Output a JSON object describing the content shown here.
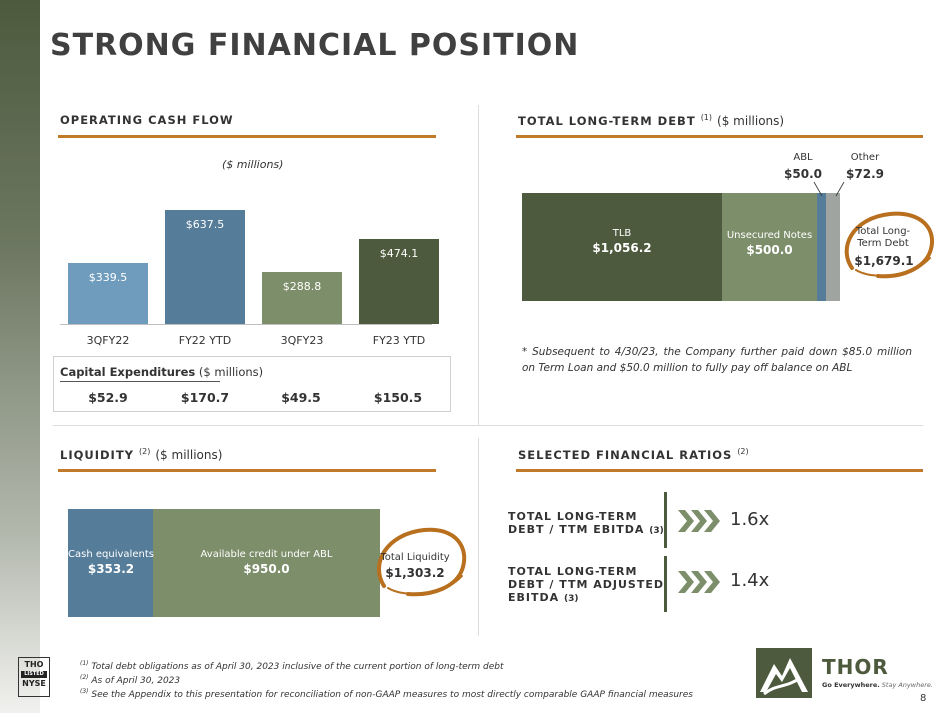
{
  "title": "STRONG FINANCIAL POSITION",
  "ocf": {
    "title": "OPERATING CASH FLOW",
    "units": "($ millions)",
    "chart_data": {
      "type": "bar",
      "categories": [
        "3QFY22",
        "FY22 YTD",
        "3QFY23",
        "FY23 YTD"
      ],
      "values": [
        339.5,
        637.5,
        288.8,
        474.1
      ],
      "value_labels": [
        "$339.5",
        "$637.5",
        "$288.8",
        "$474.1"
      ],
      "colors": [
        "#6f9cbc",
        "#557c99",
        "#7d8e6a",
        "#4d5a3d"
      ]
    },
    "capex": {
      "title_bold": "Capital Expenditures",
      "title_unit": " ($ millions)",
      "values": [
        "$52.9",
        "$170.7",
        "$49.5",
        "$150.5"
      ]
    }
  },
  "debt": {
    "title": "TOTAL LONG-TERM DEBT",
    "sup": "(1)",
    "unit": "($ millions)",
    "chart_data": {
      "type": "bar",
      "stacked": true,
      "segments": [
        {
          "name": "TLB",
          "value": 1056.2,
          "label": "$1,056.2",
          "color": "#4d5a3d"
        },
        {
          "name": "Unsecured Notes",
          "value": 500.0,
          "label": "$500.0",
          "color": "#7d8e6a"
        },
        {
          "name": "ABL",
          "value": 50.0,
          "label": "$50.0",
          "color": "#557c99"
        },
        {
          "name": "Other",
          "value": 72.9,
          "label": "$72.9",
          "color": "#a0a4a0"
        }
      ],
      "total_label": "Total Long-Term Debt",
      "total_value": "$1,679.1"
    },
    "note": "* Subsequent to 4/30/23, the Company further paid down $85.0 million on Term Loan and $50.0 million to fully pay off balance on ABL"
  },
  "liquidity": {
    "title": "LIQUIDITY",
    "sup": "(2)",
    "unit": "($ millions)",
    "chart_data": {
      "type": "bar",
      "stacked": true,
      "segments": [
        {
          "name": "Cash equivalents",
          "value": 353.2,
          "label": "$353.2",
          "color": "#557c99"
        },
        {
          "name": "Available credit under ABL",
          "value": 950.0,
          "label": "$950.0",
          "color": "#7d8e6a"
        }
      ],
      "total_label": "Total Liquidity",
      "total_value": "$1,303.2"
    }
  },
  "ratios": {
    "title": "SELECTED FINANCIAL RATIOS",
    "sup": "(2)",
    "items": [
      {
        "line1": "TOTAL LONG-TERM",
        "line2": "DEBT / TTM EBITDA",
        "sup": "(3)",
        "value": "1.6x"
      },
      {
        "line1": "TOTAL LONG-TERM",
        "line2": "DEBT / TTM ADJUSTED",
        "line3": "EBITDA",
        "sup": "(3)",
        "value": "1.4x"
      }
    ]
  },
  "footnotes": [
    {
      "sup": "(1)",
      "text": "Total debt obligations as of April 30, 2023 inclusive of the current portion of long-term debt"
    },
    {
      "sup": "(2)",
      "text": "As of April 30, 2023"
    },
    {
      "sup": "(3)",
      "text": "See the Appendix to this presentation for reconciliation of non-GAAP measures to most directly comparable GAAP financial measures"
    }
  ],
  "nyse": {
    "top": "THO",
    "mid": "LISTED",
    "bottom": "NYSE"
  },
  "brand": {
    "name": "THOR",
    "tagline_bold": "Go Everywhere.",
    "tagline_italic": " Stay Anywhere."
  },
  "page_number": "8"
}
